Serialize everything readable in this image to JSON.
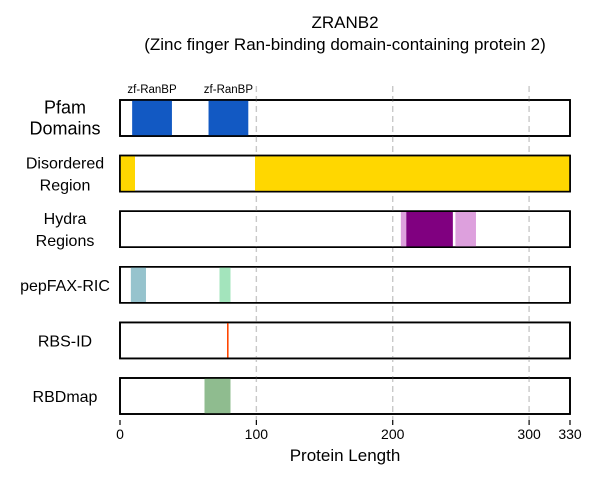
{
  "chart_data": {
    "type": "bar",
    "title": "ZRANB2",
    "subtitle": "(Zinc finger Ran-binding domain-containing protein 2)",
    "xlabel": "Protein Length",
    "xlim": [
      0,
      330
    ],
    "xticks": [
      0,
      100,
      200,
      300,
      330
    ],
    "tick_labels": [
      "0",
      "100",
      "200",
      "300",
      "330"
    ],
    "grid_lines": [
      100,
      200,
      300
    ],
    "tracks": [
      {
        "label_lines": [
          "Pfam",
          "Domains"
        ],
        "segments": [
          {
            "start": 9,
            "end": 38,
            "color": "#1259c3",
            "label": "zf-RanBP"
          },
          {
            "start": 65,
            "end": 94,
            "color": "#1259c3",
            "label": "zf-RanBP"
          }
        ]
      },
      {
        "label_lines": [
          "Disordered",
          "Region"
        ],
        "segments": [
          {
            "start": 0,
            "end": 11,
            "color": "#ffd700"
          },
          {
            "start": 99,
            "end": 330,
            "color": "#ffd700"
          }
        ]
      },
      {
        "label_lines": [
          "Hydra",
          "Regions"
        ],
        "segments": [
          {
            "start": 206,
            "end": 210,
            "color": "#dda0dd"
          },
          {
            "start": 210,
            "end": 244,
            "color": "#800080"
          },
          {
            "start": 246,
            "end": 261,
            "color": "#dda0dd"
          }
        ]
      },
      {
        "label_lines": [
          "pepFAX-RIC"
        ],
        "segments": [
          {
            "start": 8,
            "end": 19,
            "color": "#96c3cd"
          },
          {
            "start": 73,
            "end": 81,
            "color": "#a3e4bc"
          }
        ]
      },
      {
        "label_lines": [
          "RBS-ID"
        ],
        "segments": [
          {
            "start": 78.5,
            "end": 79.5,
            "color": "#ff4500"
          }
        ]
      },
      {
        "label_lines": [
          "RBDmap"
        ],
        "segments": [
          {
            "start": 62,
            "end": 81,
            "color": "#8fbc8f"
          }
        ]
      }
    ]
  }
}
